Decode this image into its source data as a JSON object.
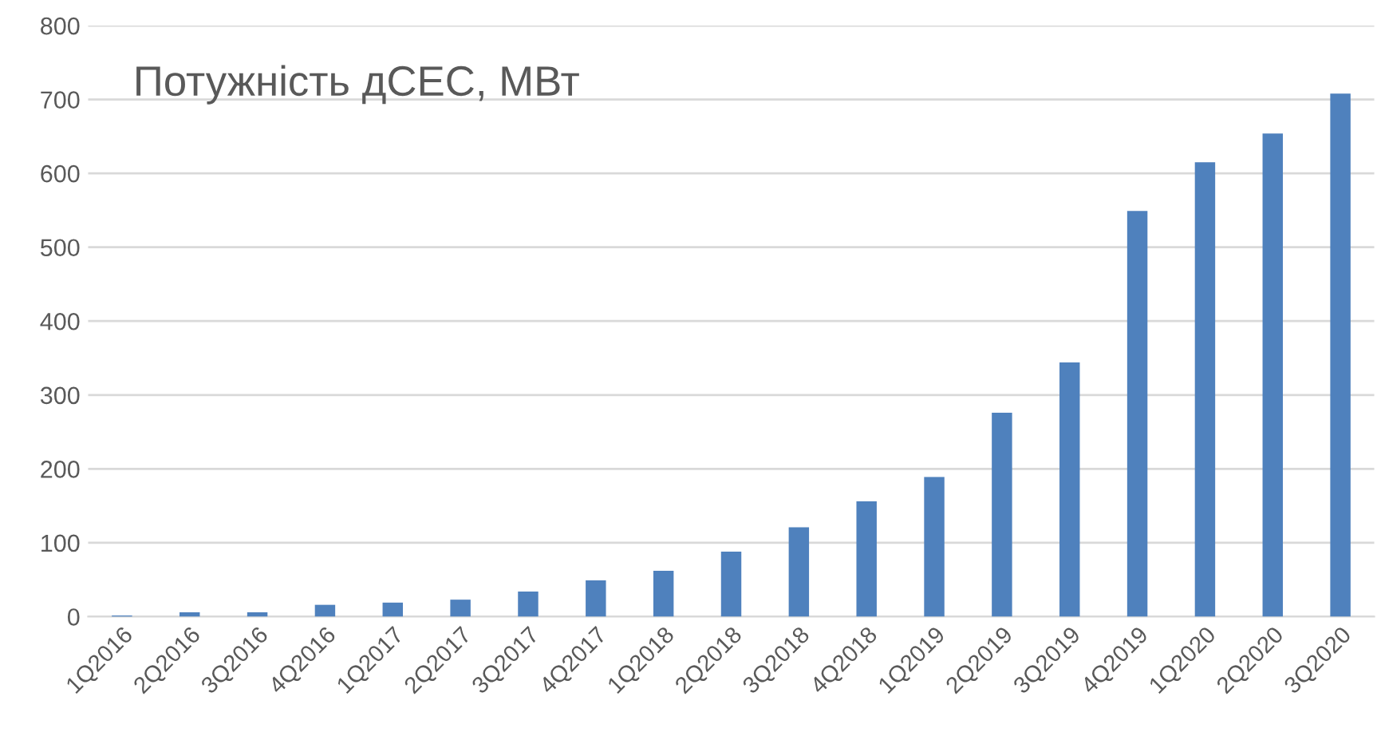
{
  "chart_data": {
    "type": "bar",
    "title": "Потужність дСЕС, МВт",
    "categories": [
      "1Q2016",
      "2Q2016",
      "3Q2016",
      "4Q2016",
      "1Q2017",
      "2Q2017",
      "3Q2017",
      "4Q2017",
      "1Q2018",
      "2Q2018",
      "3Q2018",
      "4Q2018",
      "1Q2019",
      "2Q2019",
      "3Q2019",
      "4Q2019",
      "1Q2020",
      "2Q2020",
      "3Q2020"
    ],
    "values": [
      1.5,
      6,
      6,
      16,
      19,
      23,
      34,
      49,
      62,
      88,
      121,
      156,
      189,
      276,
      344,
      549,
      615,
      654,
      708
    ],
    "color": "#4f81bd",
    "ylim": [
      0,
      800
    ],
    "yticks": [
      0,
      100,
      200,
      300,
      400,
      500,
      600,
      700,
      800
    ],
    "grid": "y",
    "legend": false
  }
}
